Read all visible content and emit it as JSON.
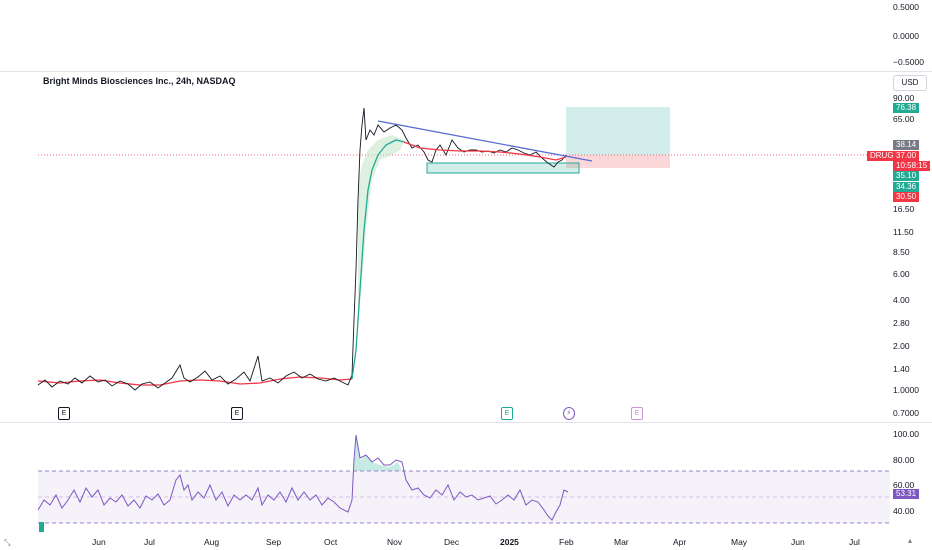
{
  "chart": {
    "title": "Bright Minds Biosciences Inc., 24h, NASDAQ",
    "currency_button": "USD",
    "ticker_tag": "DRUG",
    "top_pane_ticks": [
      "0.5000",
      "0.0000",
      "−0.5000"
    ],
    "price_ticks": [
      "90.00",
      "65.00",
      "16.50",
      "11.50",
      "8.50",
      "6.00",
      "4.00",
      "2.80",
      "2.00",
      "1.40",
      "1.0000",
      "0.7000"
    ],
    "price_tags": [
      {
        "text": "76.38",
        "color": "#22ab94"
      },
      {
        "text": "38.14",
        "color": "#787b86"
      },
      {
        "text": "37.00",
        "color": "#f23645"
      },
      {
        "text": "10:58:15",
        "color": "#f23645"
      },
      {
        "text": "35.10",
        "color": "#22ab94"
      },
      {
        "text": "34.36",
        "color": "#22ab94"
      },
      {
        "text": "30.50",
        "color": "#f23645"
      }
    ],
    "rsi_ticks": [
      "100.00",
      "80.00",
      "60.00",
      "40.00"
    ],
    "rsi_tag": "53.31",
    "time_labels": [
      "Jun",
      "Jul",
      "Aug",
      "Sep",
      "Oct",
      "Nov",
      "Dec",
      "2025",
      "Feb",
      "Mar",
      "Apr",
      "May",
      "Jun",
      "Jul"
    ],
    "event_markers": [
      "E",
      "E",
      "E",
      "⚡",
      "E"
    ],
    "colors": {
      "up": "#22ab94",
      "down": "#f23645",
      "rsi": "#7e57c2",
      "trendline": "#5b6bd6"
    }
  }
}
